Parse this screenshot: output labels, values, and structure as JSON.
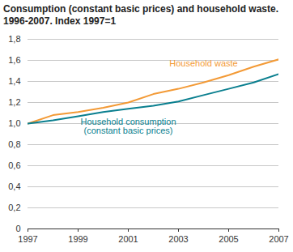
{
  "chart_data": {
    "type": "line",
    "title": "Consumption (constant basic prices) and household waste. 1996-2007. Index 1997=1",
    "x": [
      1997,
      1998,
      1999,
      2000,
      2001,
      2002,
      2003,
      2004,
      2005,
      2006,
      2007
    ],
    "series": [
      {
        "name": "Household waste",
        "color": "#f39a36",
        "values": [
          1.0,
          1.08,
          1.11,
          1.15,
          1.2,
          1.28,
          1.33,
          1.39,
          1.46,
          1.54,
          1.61
        ]
      },
      {
        "name": "Household consumption (constant basic prices)",
        "color": "#0a7f8f",
        "values": [
          1.0,
          1.03,
          1.07,
          1.11,
          1.14,
          1.17,
          1.21,
          1.27,
          1.33,
          1.39,
          1.47
        ]
      }
    ],
    "xlim": [
      1997,
      2007
    ],
    "xticks": [
      1997,
      1999,
      2001,
      2003,
      2005,
      2007
    ],
    "ylim": [
      0,
      1.8
    ],
    "yticks": [
      0,
      {
        "value": 0.2,
        "label": "0,2"
      },
      {
        "value": 0.4,
        "label": "0,4"
      },
      {
        "value": 0.6,
        "label": "0,6"
      },
      {
        "value": 0.8,
        "label": "0,8"
      },
      {
        "value": 1.0,
        "label": "1,0"
      },
      {
        "value": 1.2,
        "label": "1,2"
      },
      {
        "value": 1.4,
        "label": "1,4"
      },
      {
        "value": 1.6,
        "label": "1,6"
      },
      {
        "value": 1.8,
        "label": "1,8"
      }
    ],
    "grid": true
  }
}
